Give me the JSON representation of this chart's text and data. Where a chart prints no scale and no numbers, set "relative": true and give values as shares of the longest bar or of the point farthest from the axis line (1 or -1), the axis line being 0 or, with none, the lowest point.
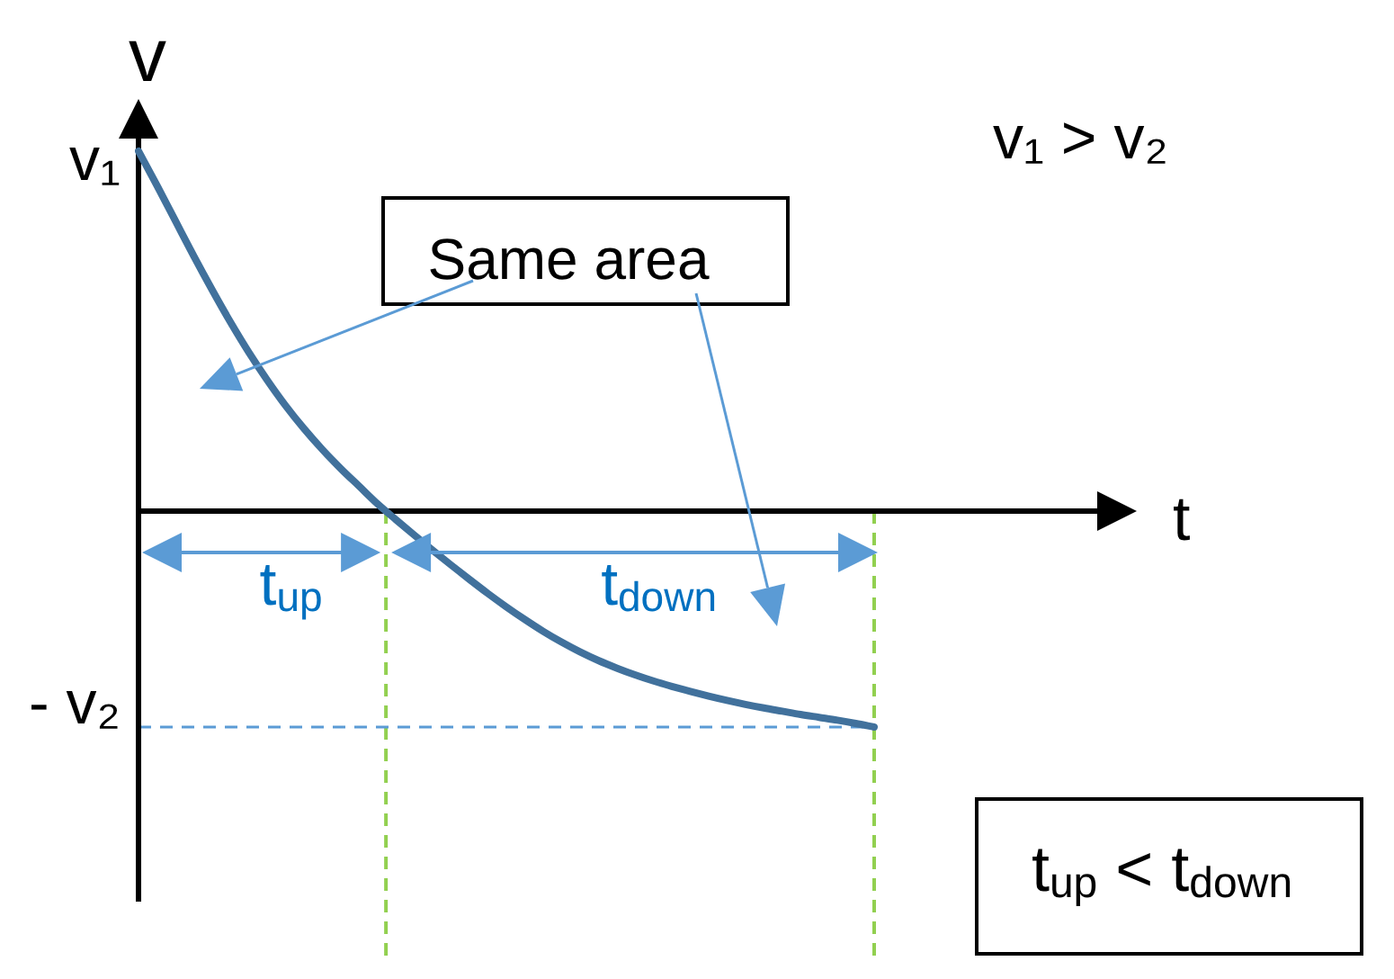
{
  "chart_data": {
    "type": "line",
    "xlabel": "t",
    "ylabel": "v",
    "relative": true,
    "categories": [
      null,
      null,
      null,
      null,
      null,
      null,
      null,
      null,
      null,
      null,
      null,
      null,
      null,
      null,
      null,
      null,
      null,
      null,
      null,
      null,
      null,
      null,
      null,
      null,
      null,
      null,
      null,
      null,
      null,
      null,
      null,
      null,
      null,
      null,
      null,
      null,
      null,
      null,
      null,
      null,
      null
    ],
    "series": [
      {
        "color": "#41719c",
        "values": [
          1.0,
          0.905,
          0.807,
          0.709,
          0.615,
          0.525,
          0.441,
          0.364,
          0.293,
          0.229,
          0.171,
          0.118,
          0.069,
          0.02,
          -0.024,
          -0.067,
          -0.109,
          -0.15,
          -0.19,
          -0.229,
          -0.266,
          -0.301,
          -0.334,
          -0.364,
          -0.391,
          -0.415,
          -0.436,
          -0.455,
          -0.472,
          -0.487,
          -0.501,
          -0.514,
          -0.526,
          -0.537,
          -0.547,
          -0.556,
          -0.565,
          -0.573,
          -0.581,
          -0.59,
          -0.6
        ]
      }
    ],
    "ref_lines": [
      {
        "axis": "y",
        "value": -0.6,
        "label": "- v₂",
        "color": "#5b9bd5",
        "line_style": "dashed"
      }
    ],
    "annotations": [
      "v₁",
      "v₁ > v₂",
      "Same area",
      "t$_{up}$",
      "t$_{down}$",
      "t$_{up}$ < t$_{down}$"
    ]
  }
}
